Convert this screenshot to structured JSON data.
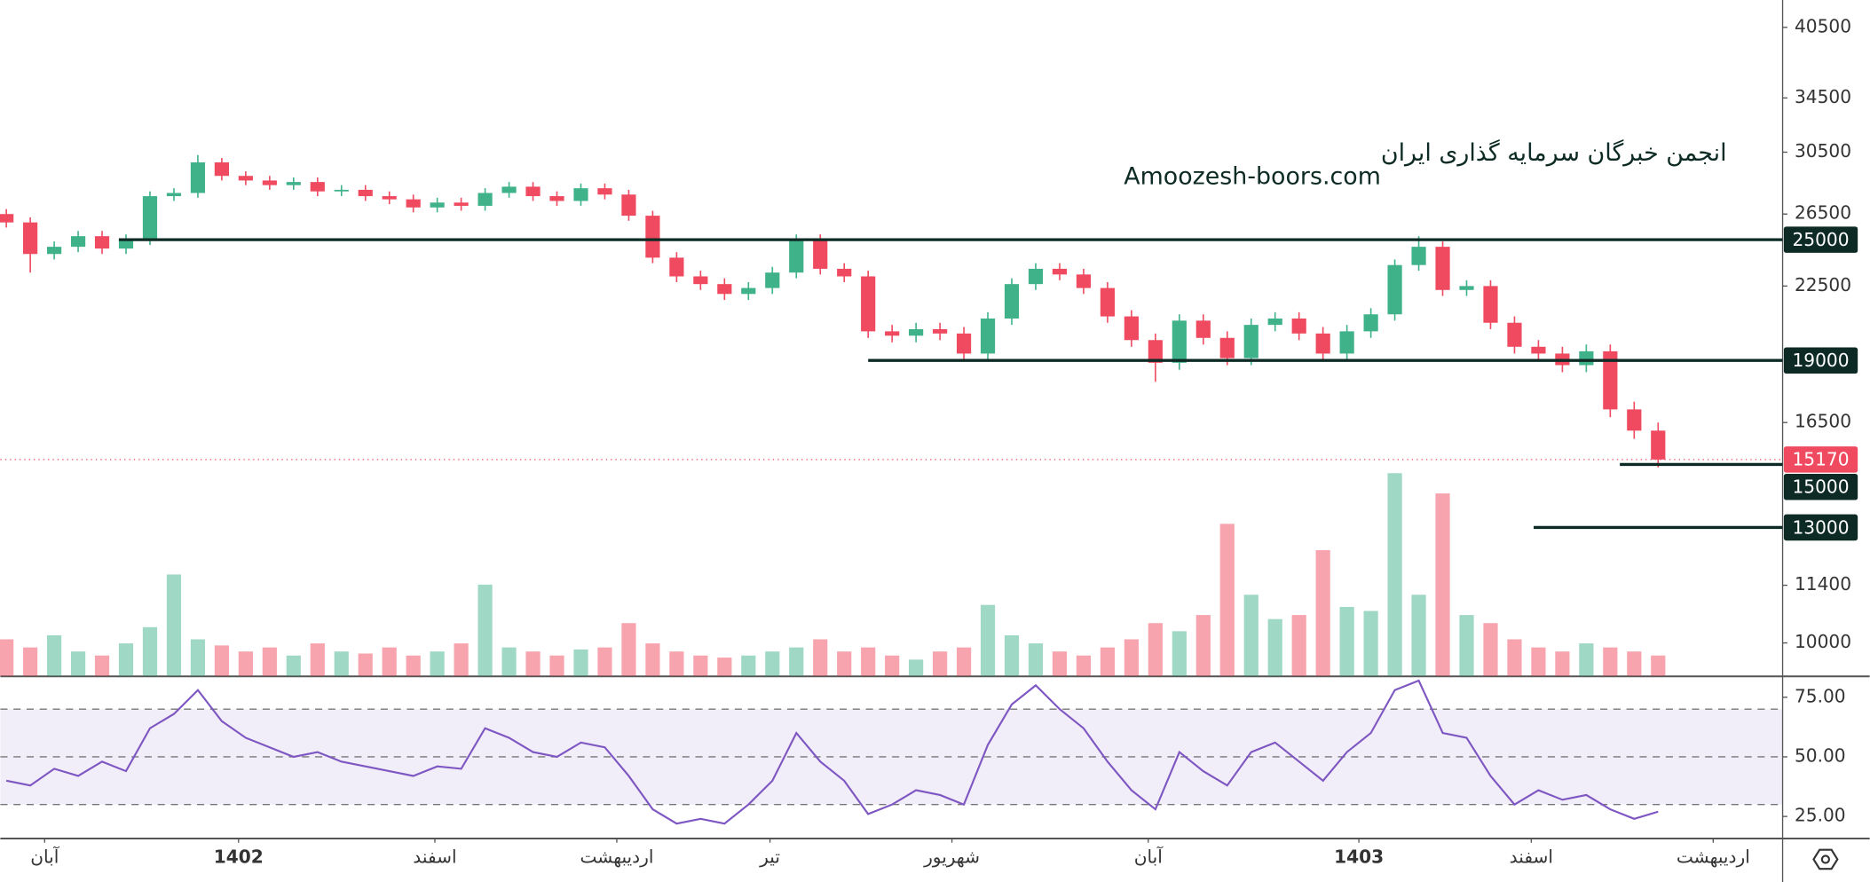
{
  "chart_data": {
    "type": "candlestick",
    "watermark": [
      "انجمن خبرگان سرمایه گذاری ایران",
      "Amoozesh-boors.com"
    ],
    "open": [
      26500,
      26000,
      24200,
      24600,
      25200,
      24500,
      25000,
      27600,
      27800,
      29800,
      28900,
      28600,
      28300,
      28500,
      27900,
      28000,
      27600,
      27400,
      26900,
      27200,
      27000,
      27800,
      28200,
      27600,
      27300,
      28100,
      27700,
      26400,
      24000,
      23000,
      22600,
      22100,
      22400,
      23200,
      25000,
      23400,
      23000,
      20300,
      20100,
      20400,
      20200,
      19300,
      20900,
      22600,
      23400,
      23100,
      22400,
      21000,
      19900,
      18900,
      20800,
      20000,
      19100,
      20600,
      20900,
      20200,
      19300,
      20300,
      21100,
      23600,
      24600,
      22300,
      22500,
      20700,
      19600,
      19300,
      18800,
      19400,
      17000,
      16200
    ],
    "high": [
      26800,
      26300,
      24900,
      25500,
      25500,
      25300,
      27900,
      28100,
      30300,
      30100,
      29200,
      28900,
      28800,
      28800,
      28300,
      28300,
      27900,
      27700,
      27500,
      27500,
      28100,
      28500,
      28500,
      27900,
      28400,
      28400,
      28000,
      26700,
      24300,
      23300,
      22900,
      22700,
      23500,
      25300,
      25300,
      23700,
      23300,
      20600,
      20700,
      20700,
      20500,
      21200,
      22900,
      23700,
      23700,
      23400,
      22700,
      21300,
      20200,
      21100,
      21100,
      20300,
      20900,
      21200,
      21200,
      20500,
      20600,
      21400,
      23900,
      25200,
      24900,
      22800,
      22800,
      21000,
      19900,
      19600,
      19700,
      19700,
      17300,
      16500
    ],
    "low": [
      25700,
      23200,
      23900,
      24300,
      24200,
      24200,
      24700,
      27300,
      27500,
      28600,
      28300,
      28000,
      28000,
      27600,
      27600,
      27300,
      27100,
      26600,
      26600,
      26700,
      26700,
      27500,
      27300,
      27000,
      27000,
      27400,
      26100,
      23700,
      22700,
      22300,
      21800,
      21800,
      22100,
      22900,
      23100,
      22700,
      20000,
      19800,
      19800,
      19900,
      19000,
      19000,
      20600,
      22300,
      22800,
      22100,
      20700,
      19600,
      18100,
      18600,
      19700,
      18800,
      18800,
      20300,
      19900,
      19000,
      19000,
      20000,
      20800,
      23300,
      22000,
      22000,
      20400,
      19300,
      19000,
      18500,
      18500,
      16700,
      15900,
      14900
    ],
    "close": [
      26000,
      24200,
      24600,
      25200,
      24500,
      25000,
      27600,
      27800,
      29800,
      28900,
      28600,
      28300,
      28500,
      27900,
      28000,
      27600,
      27400,
      26900,
      27200,
      27000,
      27800,
      28200,
      27600,
      27300,
      28100,
      27700,
      26400,
      24000,
      23000,
      22600,
      22100,
      22400,
      23200,
      25000,
      23400,
      23000,
      20300,
      20100,
      20400,
      20200,
      19300,
      20900,
      22600,
      23400,
      23100,
      22400,
      21000,
      19900,
      18900,
      20800,
      20000,
      19100,
      20600,
      20900,
      20200,
      19300,
      20300,
      21100,
      23600,
      24600,
      22300,
      22500,
      20700,
      19600,
      19300,
      18800,
      19400,
      17000,
      16200,
      15170
    ],
    "up_color": "#3fb28a",
    "down_color": "#ef4a5f",
    "ylim": [
      9280,
      43100
    ],
    "log_scale": true,
    "yticks": [
      40500,
      34500,
      30500,
      26500,
      22500,
      16500,
      11400,
      10000
    ],
    "xlim": [
      -0.25,
      74.2
    ],
    "xticks": [
      {
        "value": 1.6,
        "label": "آبان"
      },
      {
        "value": 9.7,
        "label": "1402"
      },
      {
        "value": 17.9,
        "label": "اسفند"
      },
      {
        "value": 25.5,
        "label": "اردیبهشت"
      },
      {
        "value": 31.9,
        "label": "تیر"
      },
      {
        "value": 39.5,
        "label": "شهریور"
      },
      {
        "value": 47.7,
        "label": "آبان"
      },
      {
        "value": 56.5,
        "label": "1403"
      },
      {
        "value": 63.7,
        "label": "اسفند"
      },
      {
        "value": 71.3,
        "label": "اردیبهشت"
      }
    ],
    "levels": [
      {
        "price": 25000,
        "start": 4.7
      },
      {
        "price": 19000,
        "start": 36
      },
      {
        "price": 15000,
        "start": 67.4
      },
      {
        "price": 13000,
        "start": 63.8
      }
    ],
    "level_color": "#0d2b24",
    "volume": [
      18,
      14,
      20,
      12,
      10,
      16,
      24,
      50,
      18,
      15,
      12,
      14,
      10,
      16,
      12,
      11,
      14,
      10,
      12,
      16,
      45,
      14,
      12,
      10,
      13,
      14,
      26,
      16,
      12,
      10,
      9,
      10,
      12,
      14,
      18,
      12,
      14,
      10,
      8,
      12,
      14,
      35,
      20,
      16,
      12,
      10,
      14,
      18,
      26,
      22,
      30,
      75,
      40,
      28,
      30,
      62,
      34,
      32,
      100,
      40,
      90,
      30,
      26,
      18,
      14,
      12,
      16,
      14,
      12,
      10
    ],
    "volume_ylim": [
      0,
      100
    ],
    "rsi": {
      "values": [
        40,
        38,
        45,
        42,
        48,
        44,
        62,
        68,
        78,
        65,
        58,
        54,
        50,
        52,
        48,
        46,
        44,
        42,
        46,
        45,
        62,
        58,
        52,
        50,
        56,
        54,
        42,
        28,
        22,
        24,
        22,
        30,
        40,
        60,
        48,
        40,
        26,
        30,
        36,
        34,
        30,
        55,
        72,
        80,
        70,
        62,
        48,
        36,
        28,
        52,
        44,
        38,
        52,
        56,
        48,
        40,
        52,
        60,
        78,
        82,
        60,
        58,
        42,
        30,
        36,
        32,
        34,
        28,
        24,
        27
      ],
      "ylim": [
        15.5,
        83.5
      ],
      "yticks": [
        {
          "value": 75,
          "label": "75.00"
        },
        {
          "value": 50,
          "label": "50.00"
        },
        {
          "value": 25,
          "label": "25.00"
        }
      ],
      "levels": [
        70,
        50,
        30
      ],
      "color": "#7e57c2"
    }
  }
}
